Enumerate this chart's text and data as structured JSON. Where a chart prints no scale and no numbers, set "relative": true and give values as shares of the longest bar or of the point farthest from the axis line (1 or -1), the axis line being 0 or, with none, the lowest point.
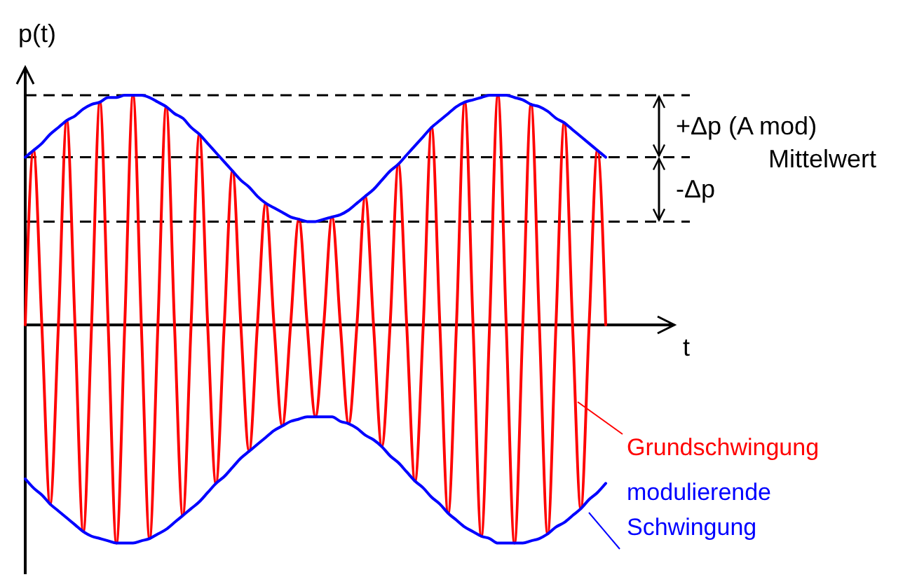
{
  "chart_data": {
    "type": "line",
    "relative": true,
    "xlabel": "t",
    "ylabel": "p(t)",
    "legend": false,
    "categories": [
      null,
      null,
      null,
      null,
      null,
      null,
      null,
      null,
      null,
      null,
      null,
      null,
      null,
      null,
      null,
      null,
      null,
      null,
      null,
      null,
      null,
      null,
      null,
      null,
      null,
      null,
      null,
      null,
      null,
      null,
      null,
      null,
      null,
      null,
      null,
      null,
      null,
      null,
      null,
      null,
      null,
      null,
      null,
      null,
      null,
      null,
      null,
      null,
      null,
      null,
      null,
      null,
      null,
      null,
      null,
      null,
      null,
      null,
      null,
      null,
      null,
      null,
      null,
      null,
      null,
      null,
      null,
      null,
      null,
      null,
      null
    ],
    "series": [
      {
        "name": "Grundschwingung",
        "color": "#ff0000",
        "values": [
          0,
          0.76,
          0,
          -0.78,
          0,
          0.89,
          0,
          -0.9,
          0,
          0.97,
          0,
          -0.95,
          0,
          1,
          0,
          -0.93,
          0,
          0.95,
          0,
          -0.83,
          0,
          0.83,
          0,
          -0.69,
          0,
          0.67,
          0,
          -0.55,
          0,
          0.53,
          0,
          -0.44,
          0,
          0.46,
          0,
          -0.4,
          0,
          0.47,
          0,
          -0.43,
          0,
          0.56,
          0,
          -0.53,
          0,
          0.7,
          0,
          -0.68,
          0,
          0.86,
          0,
          -0.82,
          0,
          0.97,
          0,
          -0.92,
          0,
          1,
          0,
          -0.95,
          0,
          0.96,
          0,
          -0.91,
          0,
          0.88,
          0,
          -0.8,
          0,
          0.76,
          0
        ]
      },
      {
        "color": "#0000ff",
        "values": [
          0.73,
          0.76,
          0.79,
          0.83,
          0.86,
          0.89,
          0.91,
          0.94,
          0.96,
          0.97,
          0.99,
          0.99,
          1,
          1,
          1,
          0.99,
          0.97,
          0.95,
          0.92,
          0.9,
          0.86,
          0.83,
          0.79,
          0.75,
          0.71,
          0.67,
          0.63,
          0.6,
          0.56,
          0.53,
          0.51,
          0.49,
          0.47,
          0.46,
          0.45,
          0.45,
          0.46,
          0.47,
          0.48,
          0.5,
          0.53,
          0.56,
          0.59,
          0.63,
          0.67,
          0.7,
          0.74,
          0.78,
          0.82,
          0.86,
          0.89,
          0.92,
          0.95,
          0.97,
          0.98,
          0.99,
          1,
          1,
          1,
          0.99,
          0.98,
          0.96,
          0.95,
          0.93,
          0.9,
          0.88,
          0.85,
          0.82,
          0.79,
          0.76,
          0.73
        ]
      },
      {
        "name": "modulierende Schwingung",
        "color": "#0000ff",
        "values": [
          -0.67,
          -0.71,
          -0.74,
          -0.78,
          -0.81,
          -0.84,
          -0.87,
          -0.9,
          -0.92,
          -0.93,
          -0.94,
          -0.95,
          -0.95,
          -0.95,
          -0.94,
          -0.93,
          -0.91,
          -0.89,
          -0.86,
          -0.83,
          -0.8,
          -0.77,
          -0.73,
          -0.69,
          -0.66,
          -0.62,
          -0.58,
          -0.55,
          -0.52,
          -0.49,
          -0.46,
          -0.44,
          -0.42,
          -0.41,
          -0.4,
          -0.4,
          -0.4,
          -0.4,
          -0.42,
          -0.43,
          -0.45,
          -0.48,
          -0.5,
          -0.53,
          -0.57,
          -0.6,
          -0.64,
          -0.68,
          -0.71,
          -0.75,
          -0.78,
          -0.82,
          -0.85,
          -0.88,
          -0.9,
          -0.92,
          -0.93,
          -0.95,
          -0.95,
          -0.95,
          -0.95,
          -0.94,
          -0.93,
          -0.91,
          -0.88,
          -0.86,
          -0.83,
          -0.8,
          -0.76,
          -0.73,
          -0.69
        ]
      }
    ],
    "ref_lines": [
      {
        "axis": "y",
        "value": 1,
        "line_style": "dashed"
      },
      {
        "axis": "y",
        "value": 0.73,
        "label": "Mittelwert",
        "line_style": "dashed"
      },
      {
        "axis": "y",
        "value": 0.45,
        "line_style": "dashed"
      }
    ],
    "annotations": [
      "+Δp (A mod)",
      "-Δp"
    ]
  }
}
